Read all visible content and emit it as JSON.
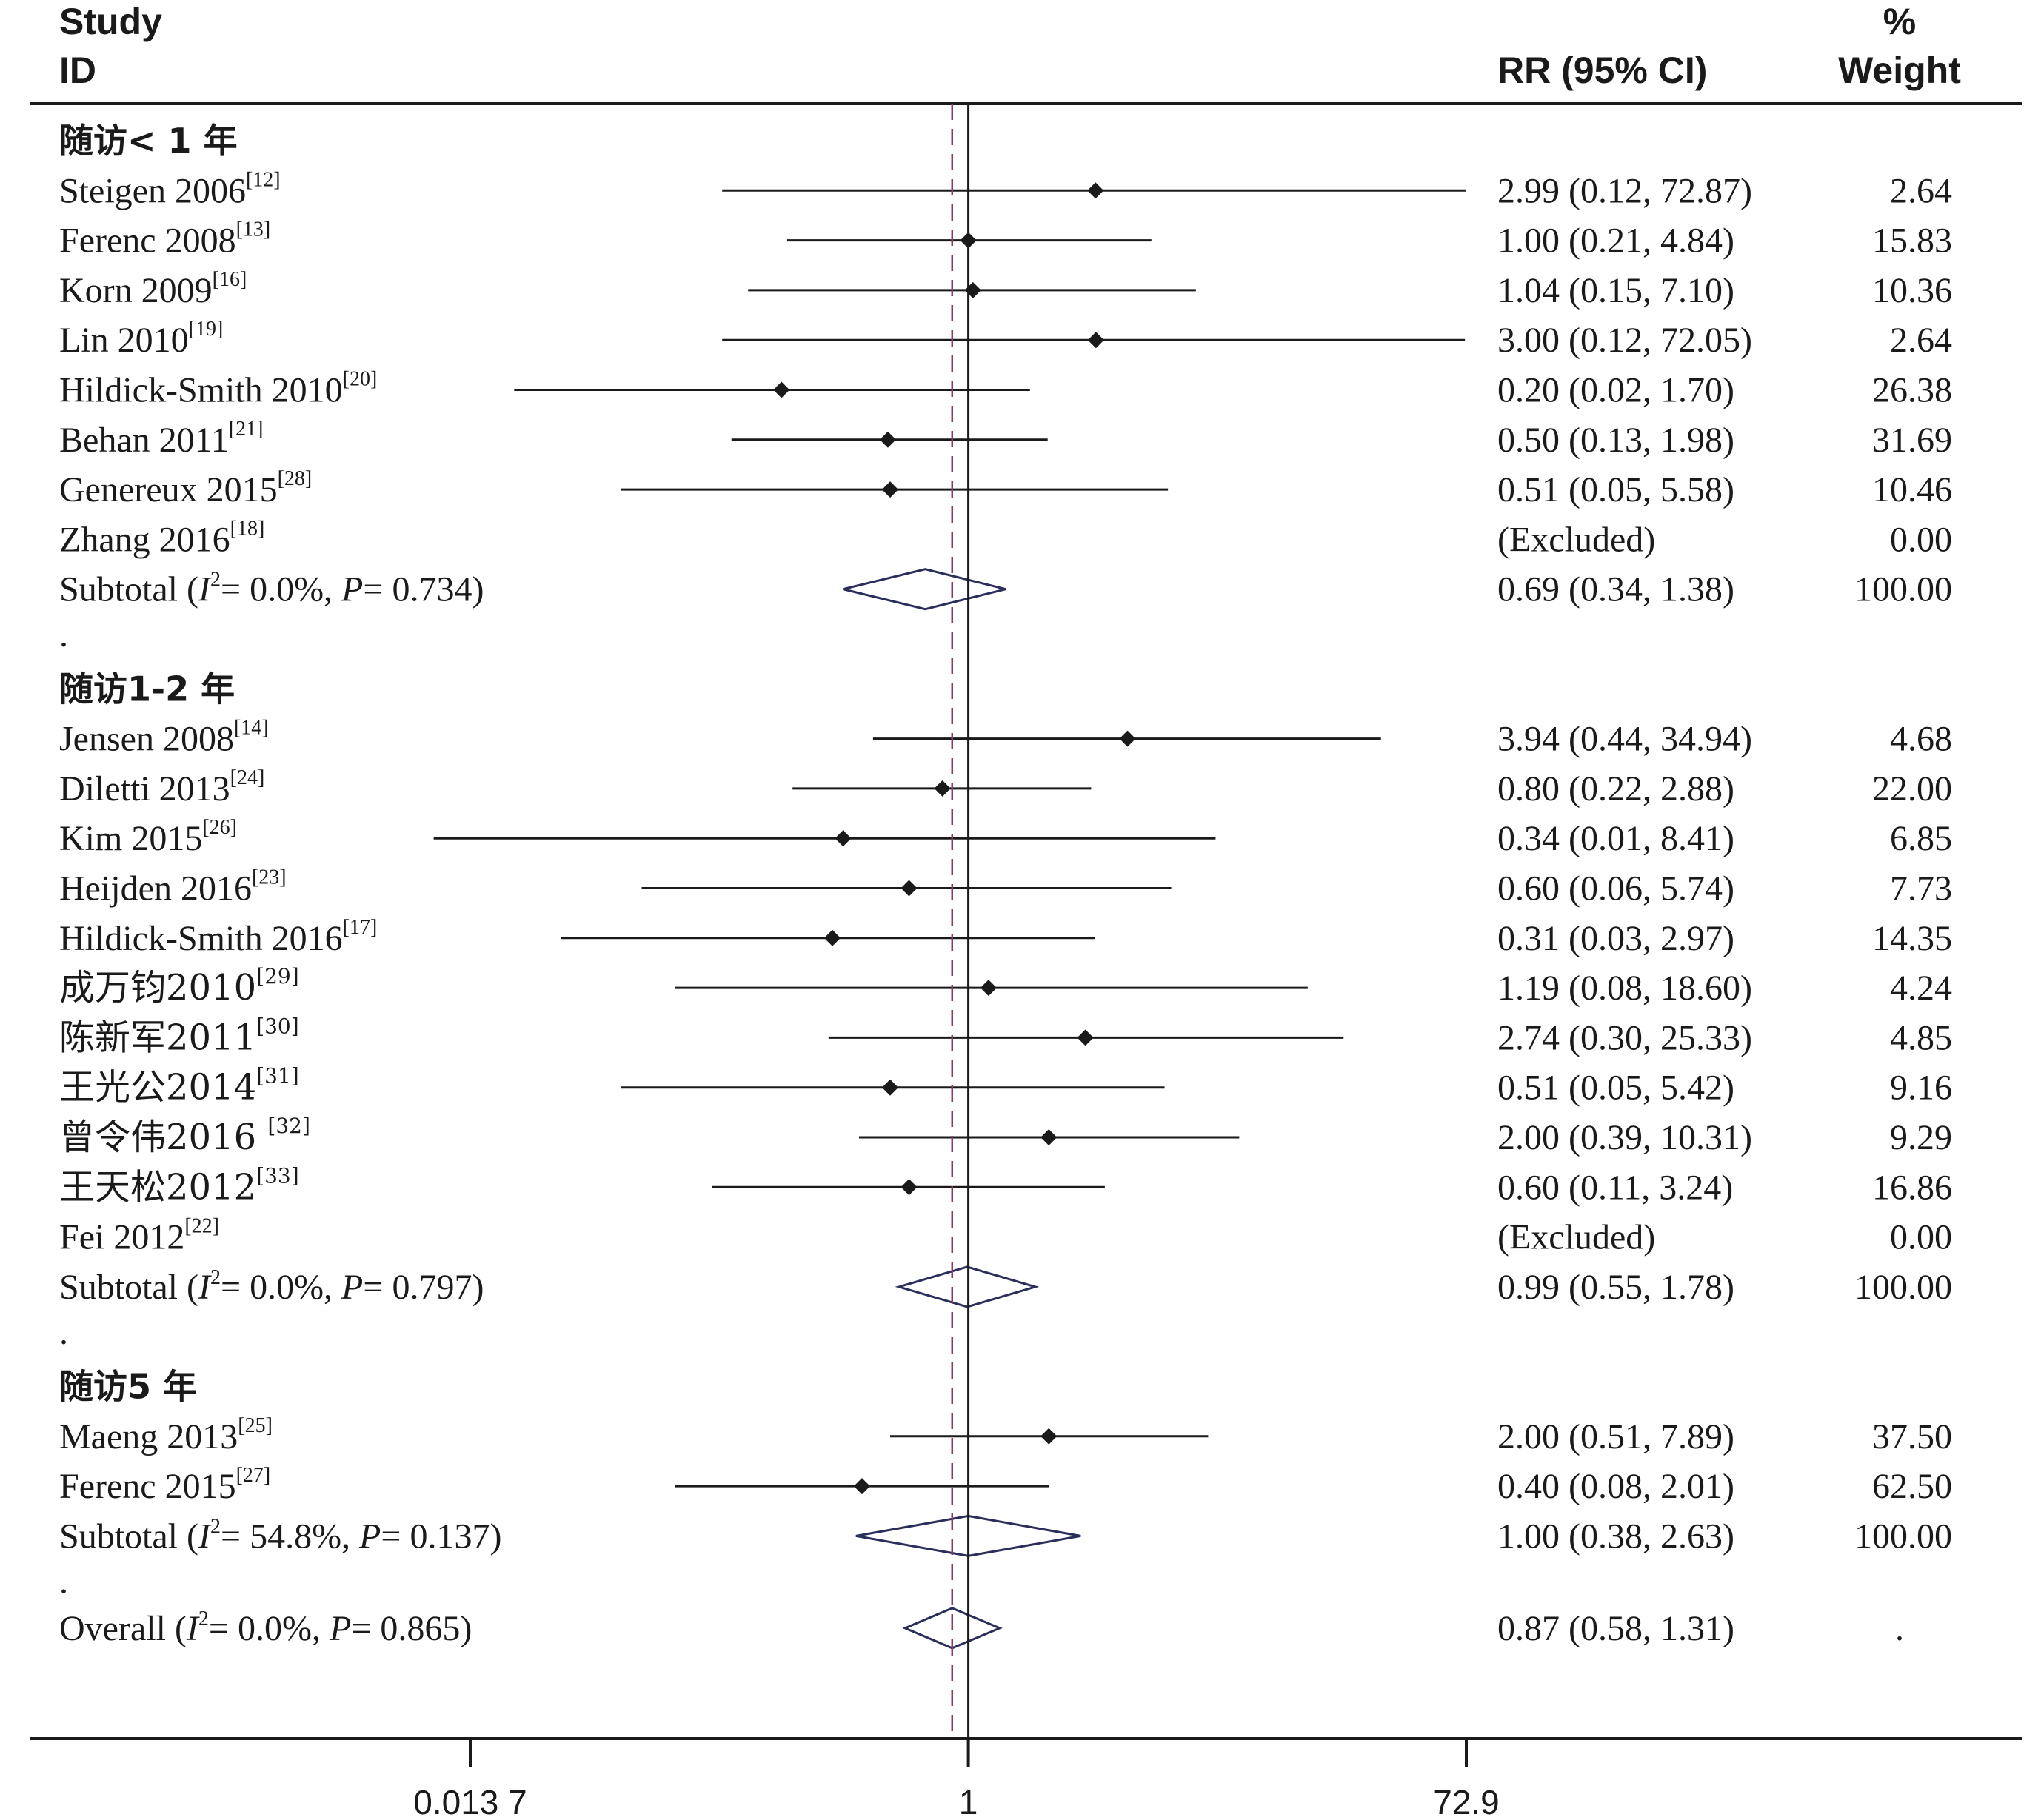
{
  "header": {
    "study": "Study",
    "id": "ID",
    "rr": "RR (95% CI)",
    "pct": "%",
    "weight": "Weight"
  },
  "colors": {
    "text": "#1a1a1a",
    "ci_line": "#1a1a1a",
    "diamond_outline": "#2b2d5a",
    "null_line": "#1a1a1a",
    "overall_line": "#8b3a62"
  },
  "chart_data": {
    "type": "forest",
    "scale": "log",
    "xlim": [
      0.0137,
      72.9
    ],
    "xticks": [
      "0.013 7",
      "1",
      "72.9"
    ],
    "xtick_values": [
      0.0137,
      1,
      72.9
    ],
    "null_value": 1,
    "overall_estimate": 0.87,
    "sections": [
      {
        "title": "随访< 1 年",
        "rows": [
          {
            "study": "Steigen 2006",
            "ref": "[12]",
            "rr": 2.99,
            "lo": 0.12,
            "hi": 72.87,
            "ci_text": "2.99 (0.12, 72.87)",
            "weight": "2.64"
          },
          {
            "study": "Ferenc 2008",
            "ref": "[13]",
            "rr": 1.0,
            "lo": 0.21,
            "hi": 4.84,
            "ci_text": "1.00 (0.21, 4.84)",
            "weight": "15.83"
          },
          {
            "study": "Korn 2009",
            "ref": "[16]",
            "rr": 1.04,
            "lo": 0.15,
            "hi": 7.1,
            "ci_text": "1.04 (0.15, 7.10)",
            "weight": "10.36"
          },
          {
            "study": "Lin 2010",
            "ref": "[19]",
            "rr": 3.0,
            "lo": 0.12,
            "hi": 72.05,
            "ci_text": "3.00 (0.12, 72.05)",
            "weight": "2.64"
          },
          {
            "study": "Hildick-Smith 2010",
            "ref": "[20]",
            "rr": 0.2,
            "lo": 0.02,
            "hi": 1.7,
            "ci_text": "0.20 (0.02, 1.70)",
            "weight": "26.38"
          },
          {
            "study": "Behan 2011",
            "ref": "[21]",
            "rr": 0.5,
            "lo": 0.13,
            "hi": 1.98,
            "ci_text": "0.50 (0.13, 1.98)",
            "weight": "31.69"
          },
          {
            "study": "Genereux 2015",
            "ref": "[28]",
            "rr": 0.51,
            "lo": 0.05,
            "hi": 5.58,
            "ci_text": "0.51 (0.05, 5.58)",
            "weight": "10.46"
          },
          {
            "study": "Zhang 2016",
            "ref": "[18]",
            "excluded": true,
            "ci_text": "(Excluded)",
            "weight": "0.00"
          }
        ],
        "subtotal": {
          "label": "Subtotal",
          "i2": "0.0%",
          "p": "0.734",
          "rr": 0.69,
          "lo": 0.34,
          "hi": 1.38,
          "ci_text": "0.69 (0.34, 1.38)",
          "weight": "100.00"
        }
      },
      {
        "title": "随访1-2 年",
        "rows": [
          {
            "study": "Jensen 2008",
            "ref": "[14]",
            "rr": 3.94,
            "lo": 0.44,
            "hi": 34.94,
            "ci_text": "3.94 (0.44, 34.94)",
            "weight": "4.68"
          },
          {
            "study": "Diletti 2013",
            "ref": "[24]",
            "rr": 0.8,
            "lo": 0.22,
            "hi": 2.88,
            "ci_text": "0.80 (0.22, 2.88)",
            "weight": "22.00"
          },
          {
            "study": "Kim 2015",
            "ref": "[26]",
            "rr": 0.34,
            "lo": 0.01,
            "hi": 8.41,
            "ci_text": "0.34 (0.01, 8.41)",
            "weight": "6.85"
          },
          {
            "study": "Heijden 2016",
            "ref": "[23]",
            "rr": 0.6,
            "lo": 0.06,
            "hi": 5.74,
            "ci_text": "0.60 (0.06, 5.74)",
            "weight": "7.73"
          },
          {
            "study": "Hildick-Smith 2016",
            "ref": "[17]",
            "rr": 0.31,
            "lo": 0.03,
            "hi": 2.97,
            "ci_text": "0.31 (0.03, 2.97)",
            "weight": "14.35"
          },
          {
            "study": "成万钧2010",
            "ref": "[29]",
            "rr": 1.19,
            "lo": 0.08,
            "hi": 18.6,
            "ci_text": "1.19 (0.08, 18.60)",
            "weight": "4.24"
          },
          {
            "study": "陈新军2011",
            "ref": "[30]",
            "rr": 2.74,
            "lo": 0.3,
            "hi": 25.33,
            "ci_text": "2.74 (0.30, 25.33)",
            "weight": "4.85"
          },
          {
            "study": "王光公2014",
            "ref": "[31]",
            "rr": 0.51,
            "lo": 0.05,
            "hi": 5.42,
            "ci_text": "0.51 (0.05, 5.42)",
            "weight": "9.16"
          },
          {
            "study": "曾令伟2016 ",
            "ref": "[32]",
            "rr": 2.0,
            "lo": 0.39,
            "hi": 10.31,
            "ci_text": "2.00 (0.39, 10.31)",
            "weight": "9.29"
          },
          {
            "study": "王天松2012",
            "ref": "[33]",
            "rr": 0.6,
            "lo": 0.11,
            "hi": 3.24,
            "ci_text": "0.60 (0.11, 3.24)",
            "weight": "16.86"
          },
          {
            "study": "Fei 2012",
            "ref": "[22]",
            "excluded": true,
            "ci_text": "(Excluded)",
            "weight": "0.00"
          }
        ],
        "subtotal": {
          "label": "Subtotal",
          "i2": "0.0%",
          "p": "0.797",
          "rr": 0.99,
          "lo": 0.55,
          "hi": 1.78,
          "ci_text": "0.99 (0.55, 1.78)",
          "weight": "100.00"
        }
      },
      {
        "title": "随访5 年",
        "rows": [
          {
            "study": "Maeng 2013",
            "ref": "[25]",
            "rr": 2.0,
            "lo": 0.51,
            "hi": 7.89,
            "ci_text": "2.00 (0.51, 7.89)",
            "weight": "37.50"
          },
          {
            "study": "Ferenc 2015",
            "ref": "[27]",
            "rr": 0.4,
            "lo": 0.08,
            "hi": 2.01,
            "ci_text": "0.40 (0.08, 2.01)",
            "weight": "62.50"
          }
        ],
        "subtotal": {
          "label": "Subtotal",
          "i2": "54.8%",
          "p": "0.137",
          "rr": 1.0,
          "lo": 0.38,
          "hi": 2.63,
          "ci_text": "1.00 (0.38, 2.63)",
          "weight": "100.00"
        }
      }
    ],
    "separator": ".",
    "overall": {
      "label": "Overall",
      "i2": "0.0%",
      "p": "0.865",
      "rr": 0.87,
      "lo": 0.58,
      "hi": 1.31,
      "ci_text": "0.87 (0.58, 1.31)",
      "weight": "."
    }
  }
}
